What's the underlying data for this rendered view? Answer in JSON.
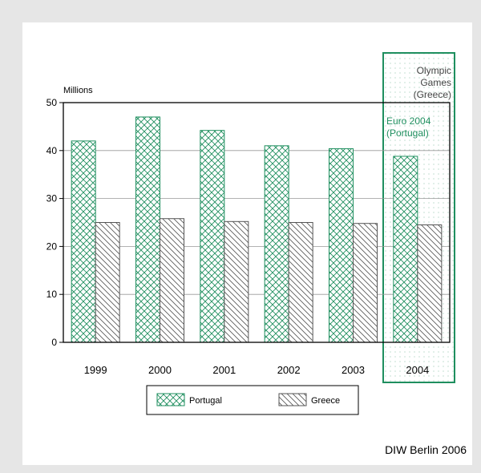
{
  "chart_data": {
    "type": "bar",
    "ylabel": "Millions",
    "ylim": [
      0,
      50
    ],
    "yticks": [
      0,
      10,
      20,
      30,
      40,
      50
    ],
    "grid": true,
    "categories": [
      "1999",
      "2000",
      "2001",
      "2002",
      "2003",
      "2004"
    ],
    "series": [
      {
        "name": "Portugal",
        "values": [
          42,
          47,
          44.2,
          41,
          40.4,
          38.8
        ],
        "color": "#1f8f5f",
        "pattern": "crosshatch"
      },
      {
        "name": "Greece",
        "values": [
          25,
          25.8,
          25.2,
          25,
          24.8,
          24.5
        ],
        "color": "#555555",
        "pattern": "diagonal"
      }
    ],
    "annotations": [
      {
        "text": [
          "Olympic",
          "Games",
          "(Greece)"
        ],
        "color": "#444444"
      },
      {
        "text": [
          "Euro 2004",
          "(Portugal)"
        ],
        "color": "#1f8f5f"
      }
    ],
    "highlight_category": "2004",
    "highlight_color": "#1f8f5f",
    "legend_position": "bottom-center"
  },
  "source": "DIW Berlin 2006"
}
